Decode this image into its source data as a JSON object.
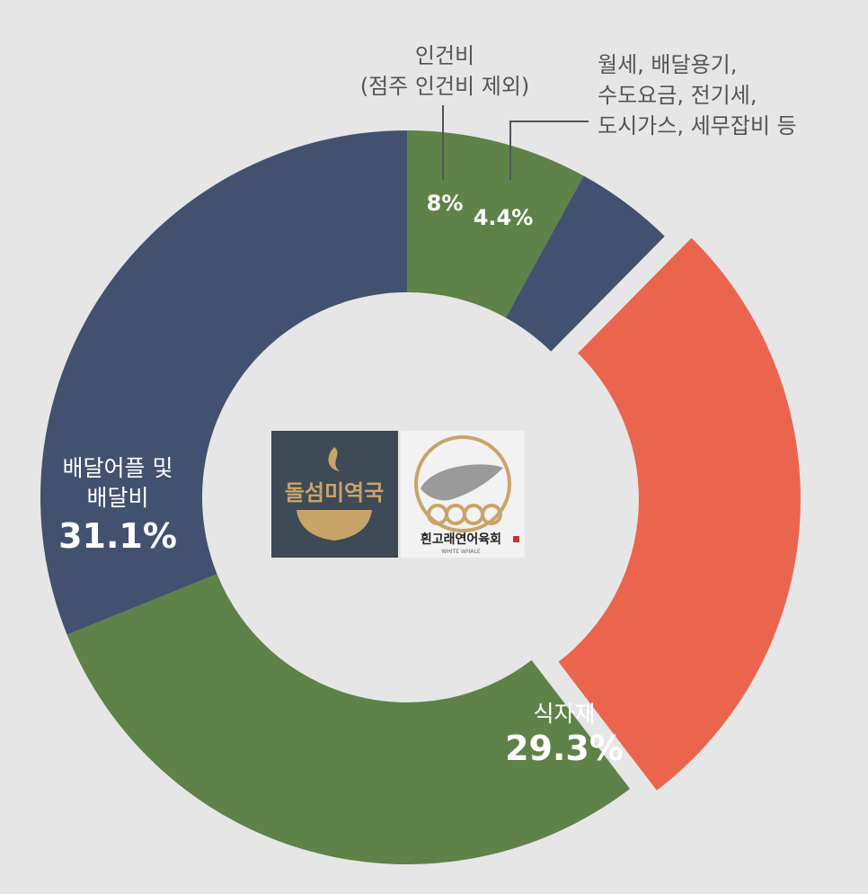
{
  "chart_data": {
    "type": "pie",
    "title": "",
    "series": [
      {
        "name": "",
        "slices": [
          {
            "key": "labor",
            "label_lines": [
              "인건비",
              "(점주 인건비 제외)"
            ],
            "value": 8,
            "value_text": "8%",
            "color": "#5e8248"
          },
          {
            "key": "rent",
            "label_lines": [
              "월세, 배달용기,",
              "수도요금, 전기세,",
              "도시가스, 세무잡비 등"
            ],
            "value": 4.4,
            "value_text": "4.4%",
            "color": "#435170"
          },
          {
            "key": "profit",
            "label_lines": [],
            "value": 27.2,
            "value_text": "",
            "color": "#eb644e",
            "exploded": true
          },
          {
            "key": "ingredients",
            "label_lines": [
              "식자재"
            ],
            "value": 29.3,
            "value_text": "29.3%",
            "color": "#5e8248"
          },
          {
            "key": "delivery",
            "label_lines": [
              "배달어플 및",
              "배달비"
            ],
            "value": 31.1,
            "value_text": "31.1%",
            "color": "#435170"
          }
        ]
      }
    ]
  },
  "logos": [
    {
      "name": "돌섬미역국",
      "bg": "#3e4a55",
      "accent": "#c9a46a"
    },
    {
      "name": "흰고래연어육회",
      "sub": "WHITE WHALE",
      "bg": "#f2f2f2",
      "accent": "#c9a46a"
    }
  ]
}
